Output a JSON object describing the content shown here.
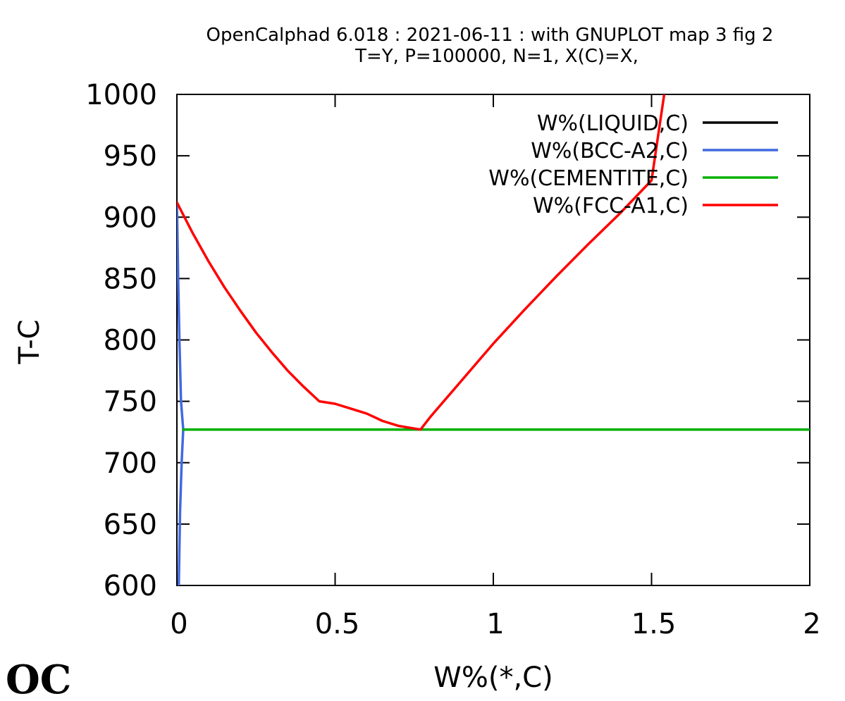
{
  "chart_data": {
    "type": "line",
    "title": "OpenCalphad   6.018 :  2021-06-11 : with GNUPLOT map 3 fig 2",
    "subtitle": "T=Y,  P=100000, N=1, X(C)=X,",
    "xlabel": "W%(*,C)",
    "ylabel": "T-C",
    "xlim": [
      0,
      2
    ],
    "ylim": [
      600,
      1000
    ],
    "x_ticks": [
      {
        "value": 0,
        "label": "0"
      },
      {
        "value": 0.5,
        "label": "0.5"
      },
      {
        "value": 1,
        "label": "1"
      },
      {
        "value": 1.5,
        "label": "1.5"
      },
      {
        "value": 2,
        "label": "2"
      }
    ],
    "y_ticks": [
      {
        "value": 600,
        "label": "600"
      },
      {
        "value": 650,
        "label": "650"
      },
      {
        "value": 700,
        "label": "700"
      },
      {
        "value": 750,
        "label": "750"
      },
      {
        "value": 800,
        "label": "800"
      },
      {
        "value": 850,
        "label": "850"
      },
      {
        "value": 900,
        "label": "900"
      },
      {
        "value": 950,
        "label": "950"
      },
      {
        "value": 1000,
        "label": "1000"
      }
    ],
    "grid": false,
    "legend_position": "top-right",
    "series": [
      {
        "name": "W%(LIQUID,C)",
        "color": "#000000",
        "points": []
      },
      {
        "name": "W%(BCC-A2,C)",
        "color": "#4169e1",
        "points": [
          [
            0,
            912
          ],
          [
            0.004,
            850
          ],
          [
            0.008,
            800
          ],
          [
            0.013,
            750
          ],
          [
            0.02,
            727
          ],
          [
            0.015,
            700
          ],
          [
            0.01,
            660
          ],
          [
            0.006,
            600
          ]
        ]
      },
      {
        "name": "W%(CEMENTITE,C)",
        "color": "#00b000",
        "points": [
          [
            0.02,
            727
          ],
          [
            0.77,
            727
          ],
          [
            2.0,
            727
          ]
        ]
      },
      {
        "name": "W%(FCC-A1,C)",
        "color": "#ff0000",
        "points": [
          [
            0,
            912
          ],
          [
            0.05,
            887
          ],
          [
            0.1,
            864
          ],
          [
            0.15,
            843
          ],
          [
            0.2,
            824
          ],
          [
            0.25,
            806
          ],
          [
            0.3,
            790
          ],
          [
            0.35,
            775
          ],
          [
            0.4,
            762
          ],
          [
            0.45,
            750
          ],
          [
            0.5,
            748
          ],
          [
            0.55,
            744
          ],
          [
            0.6,
            740
          ],
          [
            0.65,
            734
          ],
          [
            0.7,
            730
          ],
          [
            0.77,
            727
          ],
          [
            0.8,
            737
          ],
          [
            0.9,
            767
          ],
          [
            1.0,
            797
          ],
          [
            1.1,
            825
          ],
          [
            1.2,
            852
          ],
          [
            1.3,
            878
          ],
          [
            1.4,
            903
          ],
          [
            1.5,
            930
          ],
          [
            1.54,
            1000
          ]
        ]
      }
    ]
  },
  "logo": {
    "text": "OC"
  }
}
